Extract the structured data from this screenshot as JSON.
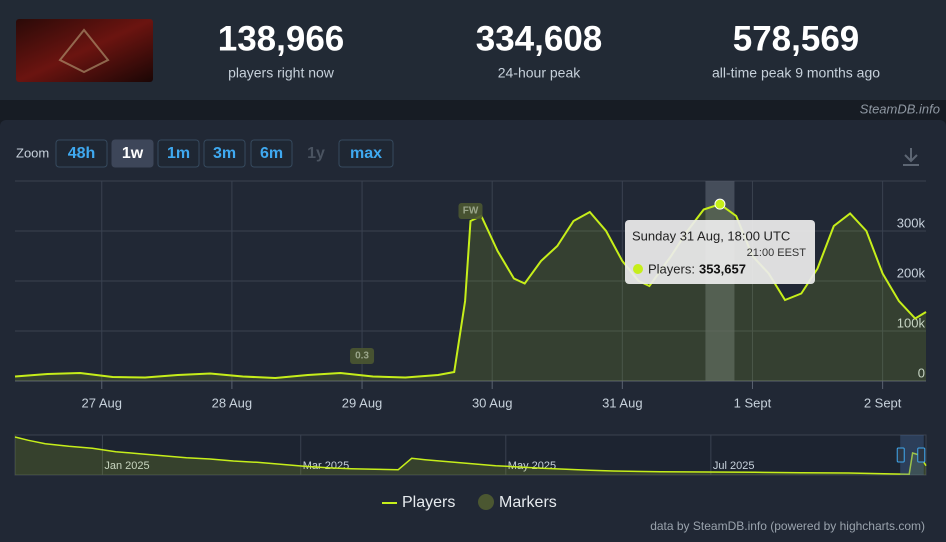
{
  "header": {
    "stats": [
      {
        "value": "138,966",
        "label": "players right now"
      },
      {
        "value": "334,608",
        "label": "24-hour peak"
      },
      {
        "value": "578,569",
        "label": "all-time peak 9 months ago"
      }
    ],
    "site": "SteamDB.info"
  },
  "zoom": {
    "label": "Zoom",
    "buttons": [
      "48h",
      "1w",
      "1m",
      "3m",
      "6m",
      "1y",
      "max"
    ],
    "selected": 1,
    "disabled": [
      5
    ]
  },
  "chart_data": {
    "type": "line",
    "x": [
      "2025-08-26T08:00",
      "2025-08-26T14:00",
      "2025-08-26T20:00",
      "2025-08-27T02:00",
      "2025-08-27T08:00",
      "2025-08-27T14:00",
      "2025-08-27T20:00",
      "2025-08-28T02:00",
      "2025-08-28T08:00",
      "2025-08-28T14:00",
      "2025-08-28T20:00",
      "2025-08-29T02:00",
      "2025-08-29T08:00",
      "2025-08-29T14:00",
      "2025-08-29T17:00",
      "2025-08-29T19:00",
      "2025-08-29T20:00",
      "2025-08-29T22:00",
      "2025-08-30T01:00",
      "2025-08-30T04:00",
      "2025-08-30T06:00",
      "2025-08-30T09:00",
      "2025-08-30T12:00",
      "2025-08-30T15:00",
      "2025-08-30T18:00",
      "2025-08-30T21:00",
      "2025-08-31T00:00",
      "2025-08-31T03:00",
      "2025-08-31T05:00",
      "2025-08-31T09:00",
      "2025-08-31T12:00",
      "2025-08-31T15:00",
      "2025-08-31T18:00",
      "2025-08-31T21:00",
      "2025-09-01T00:00",
      "2025-09-01T03:00",
      "2025-09-01T06:00",
      "2025-09-01T09:00",
      "2025-09-01T12:00",
      "2025-09-01T15:00",
      "2025-09-01T18:00",
      "2025-09-01T21:00",
      "2025-09-02T00:00",
      "2025-09-02T03:00",
      "2025-09-02T06:00",
      "2025-09-02T08:00"
    ],
    "series": [
      {
        "name": "Players",
        "color": "#c6ee1a",
        "values": [
          9000,
          14000,
          16000,
          8000,
          7000,
          12000,
          15000,
          9000,
          6000,
          12000,
          16000,
          9000,
          7000,
          12000,
          18000,
          160000,
          320000,
          330000,
          260000,
          205000,
          195000,
          240000,
          270000,
          320000,
          338000,
          300000,
          240000,
          200000,
          190000,
          250000,
          300000,
          343000,
          353657,
          330000,
          250000,
          215000,
          162000,
          175000,
          225000,
          310000,
          335000,
          300000,
          215000,
          160000,
          125000,
          138000
        ]
      }
    ],
    "markers": {
      "name": "Markers",
      "color": "#4b5731",
      "items": [
        {
          "text": "0.3",
          "x": "2025-08-29T00:00"
        },
        {
          "text": "FW",
          "x": "2025-08-29T20:00"
        }
      ]
    },
    "xlim": [
      "2025-08-26T08:00",
      "2025-09-02T08:00"
    ],
    "xticks": [
      {
        "value": "2025-08-27T00:00",
        "label": "27 Aug"
      },
      {
        "value": "2025-08-28T00:00",
        "label": "28 Aug"
      },
      {
        "value": "2025-08-29T00:00",
        "label": "29 Aug"
      },
      {
        "value": "2025-08-30T00:00",
        "label": "30 Aug"
      },
      {
        "value": "2025-08-31T00:00",
        "label": "31 Aug"
      },
      {
        "value": "2025-09-01T00:00",
        "label": "1 Sept"
      },
      {
        "value": "2025-09-02T00:00",
        "label": "2 Sept"
      }
    ],
    "ylim": [
      0,
      400000
    ],
    "yticks": [
      0,
      {
        "value": 100000,
        "label": "100k"
      },
      {
        "value": 200000,
        "label": "200k"
      },
      {
        "value": 300000,
        "label": "300k"
      }
    ],
    "grid": true,
    "tooltip": {
      "x": "2025-08-31T18:00",
      "title": "Sunday 31 Aug, 18:00 UTC",
      "subtitle": "21:00 EEST",
      "series_label": "Players:",
      "value_label": "353,657"
    },
    "navigator": {
      "x": [
        "2024-12-06",
        "2024-12-10",
        "2024-12-15",
        "2024-12-22",
        "2024-12-29",
        "2025-01-05",
        "2025-01-12",
        "2025-01-19",
        "2025-01-26",
        "2025-02-02",
        "2025-02-09",
        "2025-02-16",
        "2025-02-23",
        "2025-03-02",
        "2025-03-09",
        "2025-03-16",
        "2025-03-23",
        "2025-03-30",
        "2025-04-03",
        "2025-04-07",
        "2025-04-14",
        "2025-04-21",
        "2025-04-28",
        "2025-05-05",
        "2025-05-12",
        "2025-05-19",
        "2025-05-26",
        "2025-06-02",
        "2025-06-16",
        "2025-06-30",
        "2025-07-14",
        "2025-07-28",
        "2025-08-11",
        "2025-08-25",
        "2025-08-29",
        "2025-08-30",
        "2025-09-01",
        "2025-09-03"
      ],
      "values": [
        570000,
        520000,
        470000,
        430000,
        400000,
        350000,
        320000,
        290000,
        260000,
        240000,
        210000,
        190000,
        160000,
        130000,
        110000,
        95000,
        85000,
        80000,
        250000,
        230000,
        200000,
        170000,
        140000,
        120000,
        100000,
        85000,
        70000,
        60000,
        50000,
        45000,
        40000,
        35000,
        30000,
        15000,
        12000,
        330000,
        300000,
        140000
      ],
      "xlim": [
        "2024-12-06",
        "2025-09-03"
      ],
      "ylim": [
        0,
        600000
      ],
      "xticks": [
        {
          "value": "2025-01-01",
          "label": "Jan 2025"
        },
        {
          "value": "2025-03-01",
          "label": "Mar 2025"
        },
        {
          "value": "2025-05-01",
          "label": "May 2025"
        },
        {
          "value": "2025-07-01",
          "label": "Jul 2025"
        }
      ]
    },
    "credits": "data by SteamDB.info (powered by highcharts.com)"
  }
}
